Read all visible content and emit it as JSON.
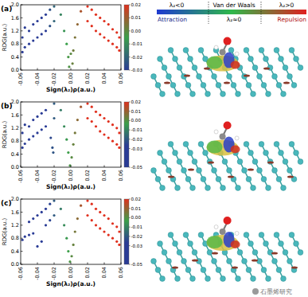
{
  "chart_data": [
    {
      "type": "scatter",
      "panel_label": "(a)",
      "x_label": "Sign(λ₂)ρ(a.u.)",
      "y_label": "RDG(a.u.)",
      "xlim": [
        -0.06,
        0.06
      ],
      "ylim": [
        0,
        2
      ],
      "xticks": [
        -0.06,
        -0.04,
        -0.02,
        {
          "value": 0,
          "label": "0.00"
        },
        0.02,
        0.04,
        0.06
      ],
      "yticks": [
        {
          "value": 0,
          "label": "0.0"
        },
        0.4,
        0.8,
        1.2,
        1.6,
        {
          "value": 2,
          "label": "2.0"
        }
      ],
      "x": [
        -0.058,
        -0.058,
        -0.055,
        -0.055,
        -0.05,
        -0.05,
        -0.045,
        -0.045,
        -0.04,
        -0.04,
        -0.035,
        -0.035,
        -0.03,
        -0.03,
        -0.025,
        -0.025,
        -0.02,
        -0.02,
        -0.012,
        -0.008,
        -0.005,
        -0.003,
        -0.002,
        0.0,
        0.002,
        0.003,
        0.005,
        0.008,
        0.012,
        0.02,
        0.02,
        0.025,
        0.025,
        0.03,
        0.03,
        0.035,
        0.035,
        0.04,
        0.04,
        0.045,
        0.045,
        0.05,
        0.05,
        0.055,
        0.055,
        0.058,
        0.058
      ],
      "values": [
        0.55,
        1.0,
        0.7,
        1.3,
        0.8,
        1.2,
        0.9,
        1.4,
        1.0,
        1.5,
        1.1,
        1.6,
        1.2,
        1.7,
        1.35,
        1.85,
        1.5,
        1.95,
        1.7,
        1.2,
        0.8,
        0.4,
        0.1,
        0.5,
        0.2,
        0.6,
        1.0,
        1.4,
        1.8,
        1.5,
        1.95,
        1.35,
        1.85,
        1.2,
        1.7,
        1.1,
        1.6,
        1.0,
        1.5,
        0.9,
        1.4,
        0.8,
        1.25,
        0.7,
        1.15,
        0.6,
        1.0
      ],
      "colorbar": {
        "range": [
          -0.03,
          0.02
        ],
        "ticks": [
          0.02,
          0.01,
          {
            "value": 0,
            "label": "0.00"
          },
          -0.01,
          -0.02,
          -0.03
        ],
        "colors": [
          "#2a3c96",
          "#3aa04a",
          "#e0301e"
        ]
      }
    },
    {
      "type": "scatter",
      "panel_label": "(b)",
      "x_label": "Sign(λ₂)ρ(a.u.)",
      "y_label": "RDG(a.u.)",
      "xlim": [
        -0.06,
        0.06
      ],
      "ylim": [
        0,
        2
      ],
      "xticks": [
        -0.06,
        -0.04,
        -0.02,
        {
          "value": 0,
          "label": "0.00"
        },
        0.02,
        0.04,
        0.06
      ],
      "yticks": [
        {
          "value": 0,
          "label": "0.0"
        },
        0.4,
        0.8,
        1.2,
        1.6,
        {
          "value": 2,
          "label": "2.0"
        }
      ],
      "x": [
        -0.058,
        -0.058,
        -0.055,
        -0.055,
        -0.05,
        -0.05,
        -0.045,
        -0.045,
        -0.04,
        -0.04,
        -0.035,
        -0.035,
        -0.03,
        -0.03,
        -0.024,
        -0.022,
        -0.021,
        -0.02,
        -0.02,
        -0.012,
        -0.008,
        -0.005,
        -0.003,
        -0.001,
        0.001,
        0.003,
        0.005,
        0.008,
        0.012,
        0.02,
        0.02,
        0.025,
        0.025,
        0.03,
        0.03,
        0.035,
        0.035,
        0.04,
        0.04,
        0.045,
        0.045,
        0.05,
        0.05,
        0.055,
        0.055,
        0.058,
        0.058
      ],
      "values": [
        0.6,
        1.05,
        0.72,
        1.3,
        0.85,
        1.25,
        0.95,
        1.45,
        1.05,
        1.55,
        1.15,
        1.65,
        1.25,
        1.75,
        0.9,
        0.6,
        0.45,
        1.5,
        1.95,
        1.75,
        1.25,
        0.85,
        0.45,
        0.05,
        0.3,
        0.7,
        1.05,
        1.45,
        1.85,
        1.5,
        1.95,
        1.4,
        1.85,
        1.25,
        1.7,
        1.1,
        1.6,
        1.0,
        1.5,
        0.9,
        1.4,
        0.8,
        1.3,
        0.7,
        1.2,
        0.6,
        1.05
      ],
      "colorbar": {
        "range": [
          -0.05,
          0.02
        ],
        "ticks": [
          0.02,
          0.01,
          {
            "value": 0,
            "label": "0.00"
          },
          -0.01,
          -0.02,
          -0.03,
          -0.05
        ],
        "colors": [
          "#2a3c96",
          "#2a3c96",
          "#3aa04a",
          "#e0301e"
        ]
      }
    },
    {
      "type": "scatter",
      "panel_label": "(c)",
      "x_label": "Sign(λ₂)ρ(a.u.)",
      "y_label": "RDG(a.u.)",
      "xlim": [
        -0.06,
        0.06
      ],
      "ylim": [
        0,
        2
      ],
      "xticks": [
        -0.06,
        -0.04,
        -0.02,
        {
          "value": 0,
          "label": "0.00"
        },
        0.02,
        0.04,
        0.06
      ],
      "yticks": [
        {
          "value": 0,
          "label": "0.0"
        },
        0.4,
        0.8,
        1.2,
        1.6,
        {
          "value": 2,
          "label": "2.0"
        }
      ],
      "x": [
        -0.058,
        -0.055,
        -0.05,
        -0.05,
        -0.045,
        -0.045,
        -0.04,
        -0.04,
        -0.035,
        -0.035,
        -0.03,
        -0.03,
        -0.025,
        -0.025,
        -0.02,
        -0.02,
        -0.012,
        -0.008,
        -0.005,
        -0.003,
        -0.001,
        0.001,
        0.003,
        0.005,
        0.008,
        0.012,
        0.02,
        0.02,
        0.025,
        0.025,
        0.03,
        0.03,
        0.035,
        0.035,
        0.04,
        0.04,
        0.045,
        0.045,
        0.05,
        0.05,
        0.055,
        0.055,
        0.058,
        0.058
      ],
      "values": [
        0.75,
        0.85,
        0.9,
        1.3,
        0.95,
        1.4,
        0.55,
        1.5,
        0.7,
        1.6,
        1.2,
        1.7,
        1.35,
        1.85,
        1.5,
        1.95,
        1.7,
        1.2,
        0.8,
        0.4,
        0.08,
        0.25,
        0.6,
        1.0,
        1.4,
        1.8,
        1.5,
        1.95,
        1.35,
        1.85,
        1.2,
        1.7,
        1.1,
        1.6,
        1.0,
        1.5,
        0.9,
        1.4,
        0.8,
        1.25,
        0.7,
        1.15,
        0.6,
        1.0
      ],
      "colorbar": {
        "range": [
          -0.05,
          0.02
        ],
        "ticks": [
          0.02,
          0.01,
          {
            "value": 0,
            "label": "0.00"
          },
          -0.01,
          -0.02,
          -0.03,
          -0.05
        ],
        "colors": [
          "#2a3c96",
          "#2a3c96",
          "#3aa04a",
          "#e0301e"
        ]
      }
    }
  ],
  "rdg_legend": {
    "left": "λ₂<0",
    "middle": "Van der Waals",
    "middle_sub": "λ₂≈0",
    "right": "λ₂>0",
    "left_label": "Attraction",
    "right_label": "Repulsion",
    "colors": [
      "#1f3ad0",
      "#2fb84a",
      "#e02020"
    ]
  },
  "watermark": "石墨烯研究"
}
